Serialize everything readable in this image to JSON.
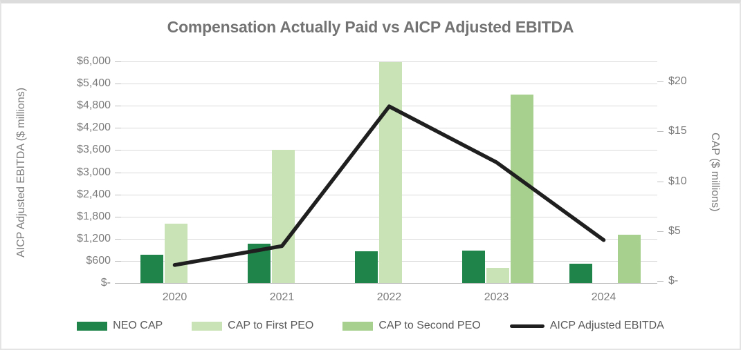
{
  "title": "Compensation Actually Paid vs AICP Adjusted EBITDA",
  "chart_data": {
    "type": "combo-bar-line",
    "title": "Compensation Actually Paid vs AICP Adjusted EBITDA",
    "categories": [
      "2020",
      "2021",
      "2022",
      "2023",
      "2024"
    ],
    "bar_series": [
      {
        "name": "NEO CAP",
        "axis": "left",
        "color": "#1e8449",
        "values": [
          770,
          1070,
          860,
          870,
          520
        ]
      },
      {
        "name": "CAP to First PEO",
        "axis": "left",
        "color": "#c9e3b7",
        "values": [
          1600,
          3600,
          5990,
          410,
          null
        ]
      },
      {
        "name": "CAP to Second PEO",
        "axis": "left",
        "color": "#a7d08e",
        "values": [
          null,
          null,
          null,
          5110,
          1310
        ]
      }
    ],
    "line_series": [
      {
        "name": "AICP Adjusted EBITDA",
        "axis": "right",
        "color": "#1f1f1f",
        "values": [
          1.6,
          3.5,
          17.5,
          11.9,
          4.1
        ]
      }
    ],
    "left_axis": {
      "label": "AICP Adjusted EBITDA ($ millions)",
      "min": 0,
      "max": 6000,
      "step": 600,
      "tick_labels": [
        "$-",
        "$600",
        "$1,200",
        "$1,800",
        "$2,400",
        "$3,000",
        "$3,600",
        "$4,200",
        "$4,800",
        "$5,400",
        "$6,000"
      ]
    },
    "right_axis": {
      "label": "CAP ($ millions)",
      "min": 0,
      "max": 20,
      "step": 5,
      "tick_labels": [
        "$-",
        "$5",
        "$10",
        "$15",
        "$20"
      ]
    },
    "grid": true,
    "legend_position": "bottom",
    "legend": [
      "NEO CAP",
      "CAP to First PEO",
      "CAP to Second PEO",
      "AICP Adjusted EBITDA"
    ]
  },
  "colors": {
    "neo_cap": "#1e8449",
    "cap_first_peo": "#c9e3b7",
    "cap_second_peo": "#a7d08e",
    "ebitda_line": "#1f1f1f",
    "gridline": "#d9d9d9",
    "axis_text": "#7c7c7c",
    "title_text": "#737373",
    "border": "#dcdcdc"
  }
}
